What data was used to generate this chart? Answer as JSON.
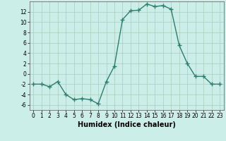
{
  "x": [
    0,
    1,
    2,
    3,
    4,
    5,
    6,
    7,
    8,
    9,
    10,
    11,
    12,
    13,
    14,
    15,
    16,
    17,
    18,
    19,
    20,
    21,
    22,
    23
  ],
  "y": [
    -2,
    -2,
    -2.5,
    -1.5,
    -4,
    -5,
    -4.8,
    -5,
    -5.8,
    -1.5,
    1.5,
    10.5,
    12.2,
    12.3,
    13.5,
    13.0,
    13.2,
    12.5,
    5.5,
    2.0,
    -0.5,
    -0.5,
    -2.0,
    -2.0
  ],
  "line_color": "#2e7d6e",
  "marker": "+",
  "marker_size": 4,
  "marker_color": "#2e7d6e",
  "bg_color": "#cceee8",
  "grid_color": "#aaccbb",
  "xlabel": "Humidex (Indice chaleur)",
  "ylim": [
    -7,
    14
  ],
  "xlim": [
    -0.5,
    23.5
  ],
  "yticks": [
    -6,
    -4,
    -2,
    0,
    2,
    4,
    6,
    8,
    10,
    12
  ],
  "xticks": [
    0,
    1,
    2,
    3,
    4,
    5,
    6,
    7,
    8,
    9,
    10,
    11,
    12,
    13,
    14,
    15,
    16,
    17,
    18,
    19,
    20,
    21,
    22,
    23
  ],
  "xlabel_fontsize": 7,
  "tick_fontsize": 5.5,
  "line_width": 1.0,
  "marker_linewidth": 1.0
}
